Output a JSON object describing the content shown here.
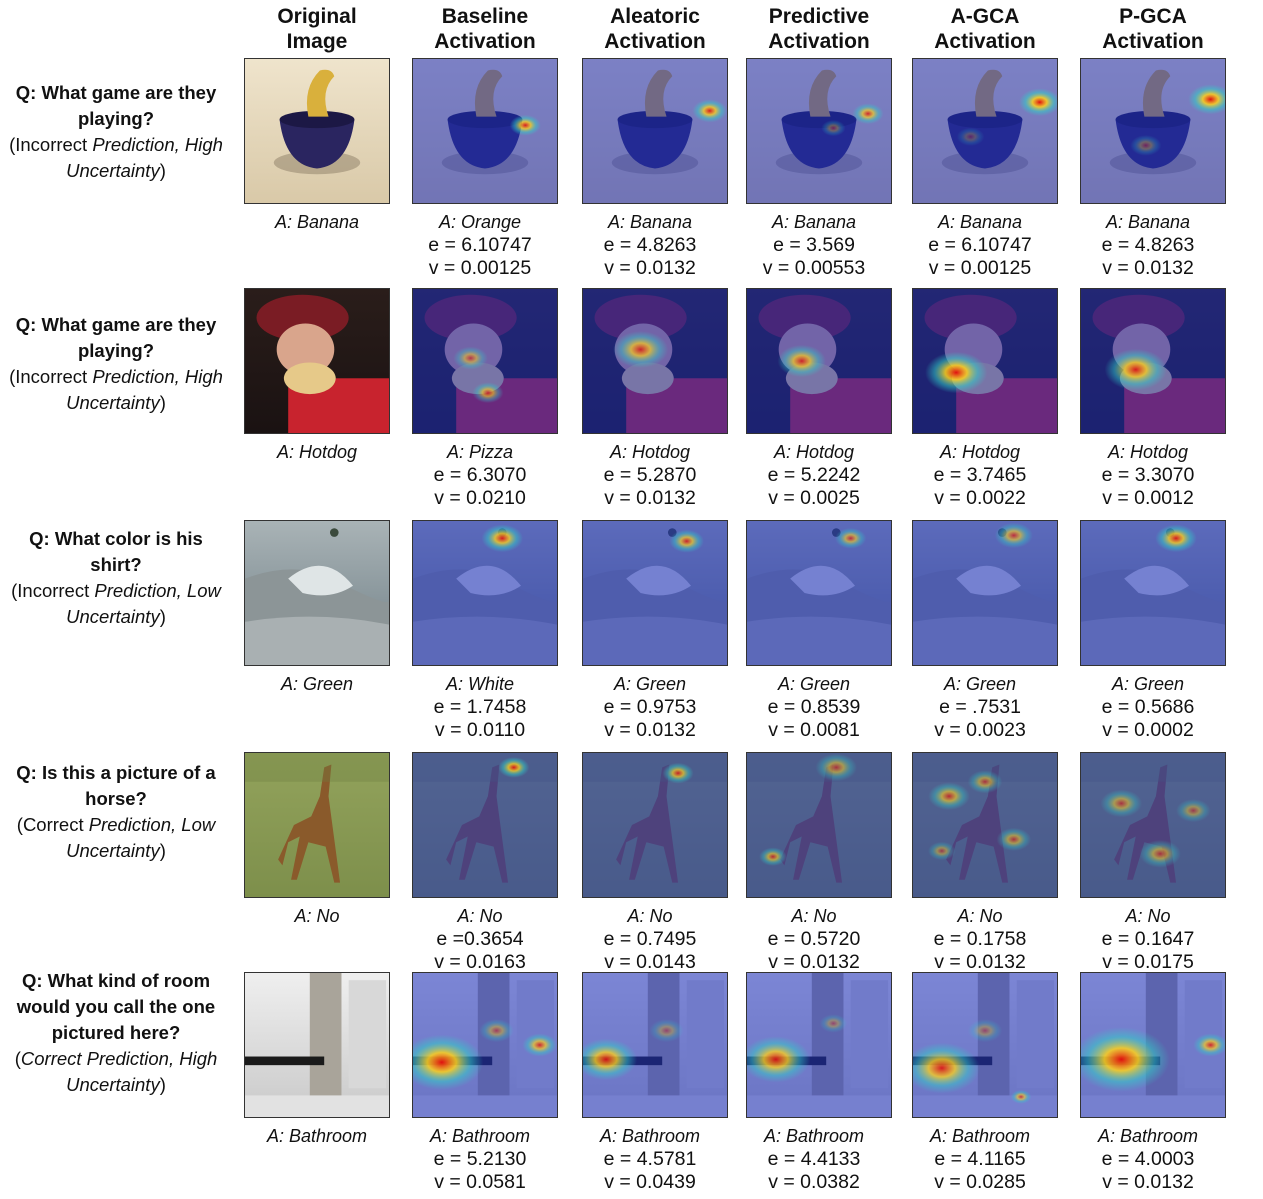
{
  "headers": [
    "Original\nImage",
    "Baseline\nActivation",
    "Aleatoric\nActivation",
    "Predictive\nActivation",
    "A-GCA\nActivation",
    "P-GCA\nActivation"
  ],
  "rows": [
    {
      "question": "Q: What game are they playing?",
      "note_open": "(Incorrect ",
      "note_italic": "Prediction, High Uncertainty",
      "note_close": ")",
      "scene": "banana",
      "original_answer": "A: Banana",
      "methods": [
        {
          "answer": "A: Orange",
          "e": "e = 6.10747",
          "v": "v = 0.00125"
        },
        {
          "answer": "A: Banana",
          "e": "e = 4.8263",
          "v": "v = 0.0132"
        },
        {
          "answer": "A: Banana",
          "e": "e = 3.569",
          "v": "v = 0.00553"
        },
        {
          "answer": "A: Banana",
          "e": "e = 6.10747",
          "v": "v = 0.00125"
        },
        {
          "answer": "A: Banana",
          "e": "e = 4.8263",
          "v": "v = 0.0132"
        }
      ]
    },
    {
      "question": "Q: What game are they playing?",
      "note_open": "(Incorrect ",
      "note_italic": "Prediction, High Uncertainty",
      "note_close": ")",
      "scene": "hotdog",
      "original_answer": "A: Hotdog",
      "methods": [
        {
          "answer": "A: Pizza",
          "e": "e = 6.3070",
          "v": "v = 0.0210"
        },
        {
          "answer": "A: Hotdog",
          "e": "e = 5.2870",
          "v": "v = 0.0132"
        },
        {
          "answer": "A: Hotdog",
          "e": "e = 5.2242",
          "v": "v = 0.0025"
        },
        {
          "answer": "A: Hotdog",
          "e": "e = 3.7465",
          "v": "v = 0.0022"
        },
        {
          "answer": "A: Hotdog",
          "e": "e = 3.3070",
          "v": "v = 0.0012"
        }
      ]
    },
    {
      "question": "Q: What color is his shirt?",
      "note_open": "(Incorrect ",
      "note_italic": "Prediction, Low Uncertainty",
      "note_close": ")",
      "scene": "surf",
      "original_answer": "A: Green",
      "methods": [
        {
          "answer": "A: White",
          "e": "e = 1.7458",
          "v": "v = 0.0110"
        },
        {
          "answer": "A: Green",
          "e": "e = 0.9753",
          "v": "v = 0.0132"
        },
        {
          "answer": "A: Green",
          "e": "e = 0.8539",
          "v": "v = 0.0081"
        },
        {
          "answer": "A: Green",
          "e": "e = .7531",
          "v": "v = 0.0023"
        },
        {
          "answer": "A: Green",
          "e": "e = 0.5686",
          "v": "v = 0.0002"
        }
      ]
    },
    {
      "question": "Q: Is this a picture of a horse?",
      "note_open": "(Correct ",
      "note_italic": "Prediction, Low Uncertainty",
      "note_close": ")",
      "scene": "giraffe",
      "original_answer": "A: No",
      "methods": [
        {
          "answer": "A: No",
          "e": "e =0.3654",
          "v": "v = 0.0163"
        },
        {
          "answer": "A: No",
          "e": "e = 0.7495",
          "v": "v = 0.0143"
        },
        {
          "answer": "A: No",
          "e": "e = 0.5720",
          "v": "v = 0.0132"
        },
        {
          "answer": "A: No",
          "e": "e = 0.1758",
          "v": "v = 0.0132"
        },
        {
          "answer": "A: No",
          "e": "e = 0.1647",
          "v": "v = 0.0175"
        }
      ]
    },
    {
      "question": "Q: What kind of room would you call the one pictured here?",
      "note_open": "(",
      "note_italic": "Correct Prediction, High Uncertainty",
      "note_close": ")",
      "scene": "bathroom",
      "original_answer": "A: Bathroom",
      "methods": [
        {
          "answer": "A: Bathroom",
          "e": "e = 5.2130",
          "v": "v = 0.0581"
        },
        {
          "answer": "A: Bathroom",
          "e": "e = 4.5781",
          "v": "v = 0.0439"
        },
        {
          "answer": "A: Bathroom",
          "e": "e = 4.4133",
          "v": "v = 0.0382"
        },
        {
          "answer": "A: Bathroom",
          "e": "e = 4.1165",
          "v": "v = 0.0285"
        },
        {
          "answer": "A: Bathroom",
          "e": "e = 4.0003",
          "v": "v = 0.0132"
        }
      ]
    }
  ]
}
